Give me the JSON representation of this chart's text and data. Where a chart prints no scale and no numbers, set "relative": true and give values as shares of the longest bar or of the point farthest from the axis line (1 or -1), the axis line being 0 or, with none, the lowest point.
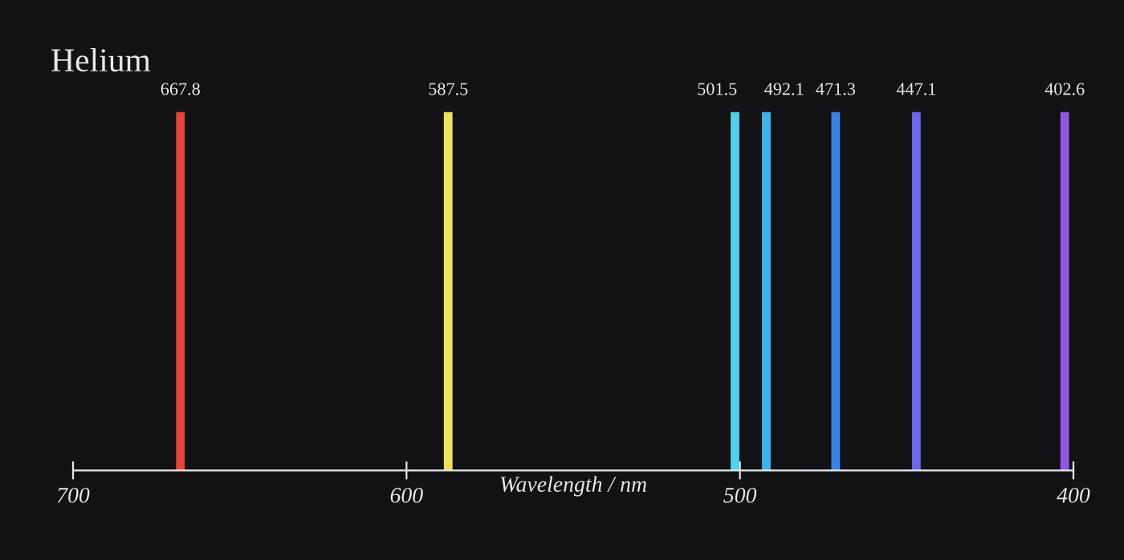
{
  "chart_data": {
    "type": "bar",
    "title": "Helium",
    "xlabel": "Wavelength / nm",
    "xlim": [
      700,
      400
    ],
    "xticks": [
      700,
      600,
      500,
      400
    ],
    "relative": true,
    "x": [
      667.8,
      587.5,
      501.5,
      492.1,
      471.3,
      447.1,
      402.6
    ],
    "values": [
      1,
      1,
      1,
      1,
      1,
      1,
      1
    ],
    "colors": [
      "#e8453a",
      "#ece25a",
      "#4fd2ee",
      "#3ab4ea",
      "#3a84e6",
      "#6c66ec",
      "#9058e6"
    ],
    "annotations": [
      {
        "text": "667.8",
        "x": 667.8,
        "y": 1
      },
      {
        "text": "587.5",
        "x": 587.5,
        "y": 1
      },
      {
        "text": "501.5",
        "x": 501.5,
        "y": 1
      },
      {
        "text": "492.1",
        "x": 492.1,
        "y": 1
      },
      {
        "text": "471.3",
        "x": 471.3,
        "y": 1
      },
      {
        "text": "447.1",
        "x": 447.1,
        "y": 1
      },
      {
        "text": "402.6",
        "x": 402.6,
        "y": 1
      }
    ]
  }
}
